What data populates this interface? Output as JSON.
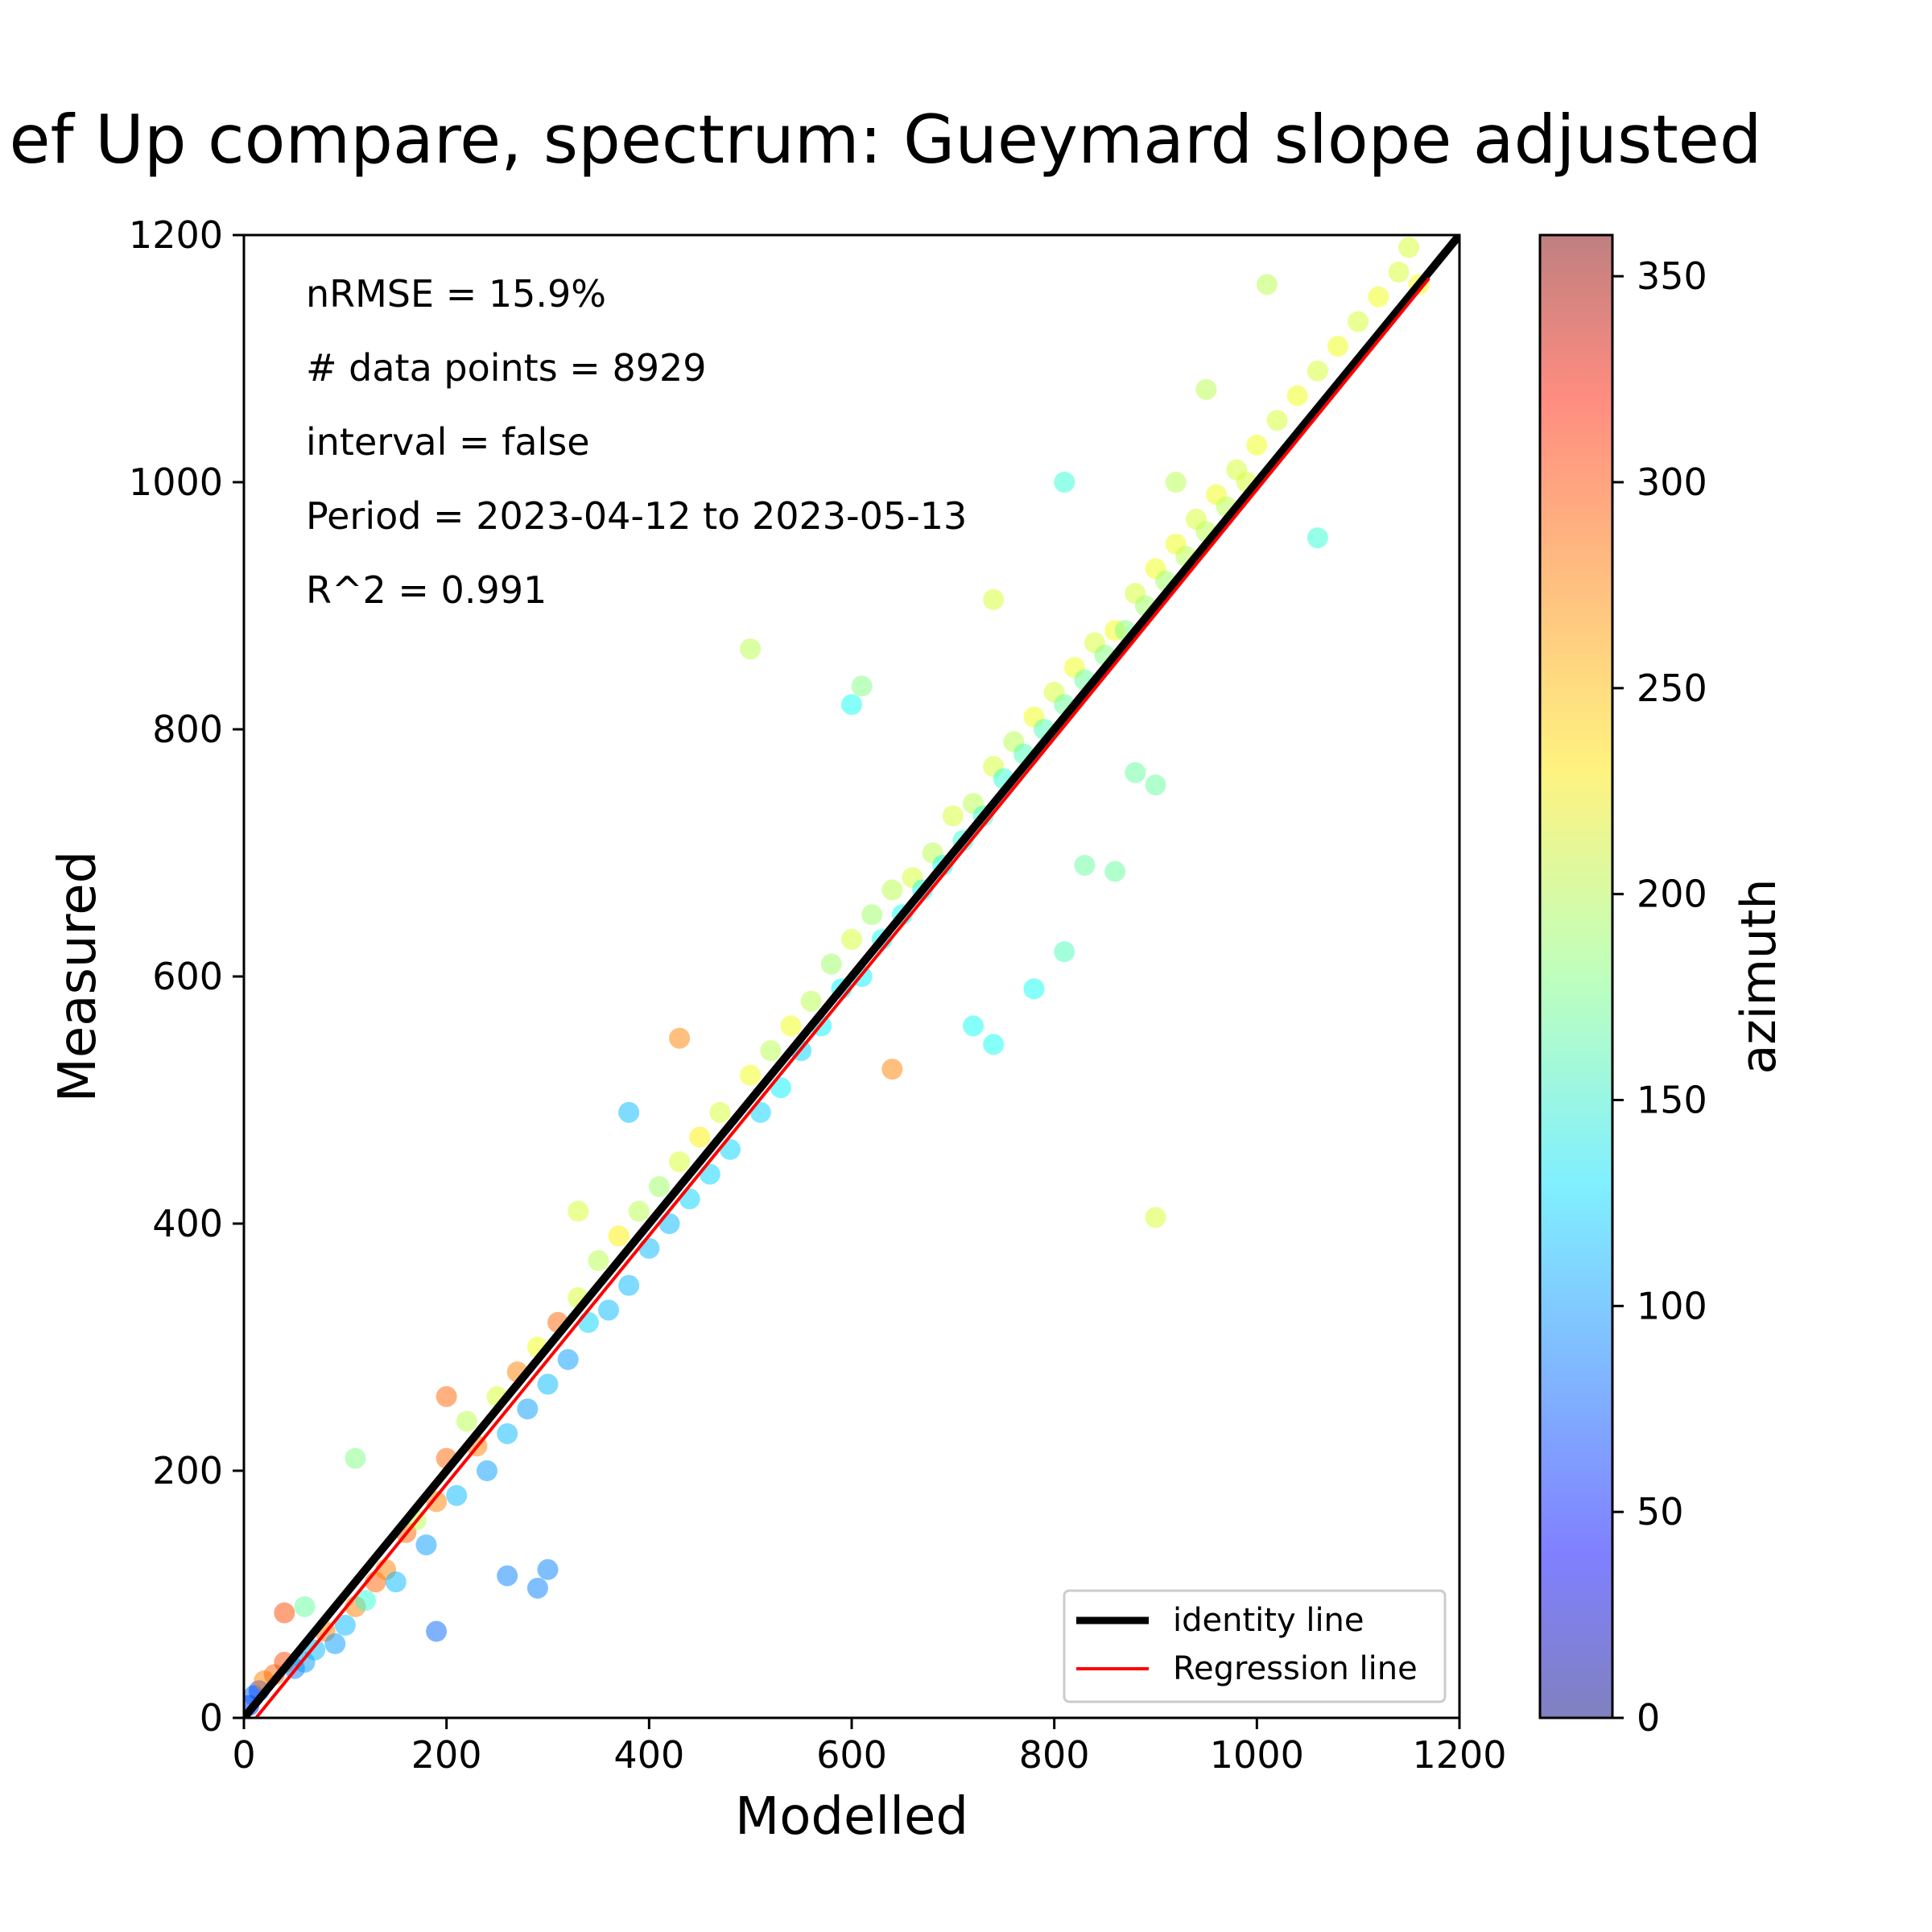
{
  "chart_data": {
    "type": "scatter",
    "title": "ef Up compare, spectrum: Gueymard slope adjusted",
    "xlabel": "Modelled",
    "ylabel": "Measured",
    "xlim": [
      0,
      1200
    ],
    "ylim": [
      0,
      1200
    ],
    "x_ticks": [
      "0",
      "200",
      "400",
      "600",
      "800",
      "1000",
      "1200"
    ],
    "y_ticks": [
      "0",
      "200",
      "400",
      "600",
      "800",
      "1000",
      "1200"
    ],
    "grid": false,
    "annotations": [
      "nRMSE = 15.9%",
      "# data points = 8929",
      "interval = false",
      "Period = 2023-04-12 to 2023-05-13",
      "R^2 = 0.991"
    ],
    "legend": {
      "placement": "lower-right",
      "entries": [
        {
          "label": "identity line",
          "color": "#000000"
        },
        {
          "label": "Regression line",
          "color": "#ff0000"
        }
      ]
    },
    "lines": [
      {
        "name": "identity line",
        "color": "#000000",
        "x": [
          0,
          1200
        ],
        "y": [
          0,
          1200
        ]
      },
      {
        "name": "Regression line",
        "color": "#ff0000",
        "x": [
          0,
          1170
        ],
        "y": [
          -12,
          1165
        ]
      }
    ],
    "colorbar": {
      "label": "azimuth",
      "range": [
        0,
        360
      ],
      "ticks": [
        "0",
        "50",
        "100",
        "150",
        "200",
        "250",
        "300",
        "350"
      ],
      "colormap": "jet",
      "alpha": 0.5
    },
    "series": [
      {
        "note_fields": [
          "x",
          "y",
          "azimuth"
        ],
        "points": [
          [
            5,
            10,
            60
          ],
          [
            10,
            18,
            80
          ],
          [
            15,
            22,
            70
          ],
          [
            20,
            30,
            270
          ],
          [
            30,
            35,
            280
          ],
          [
            40,
            45,
            290
          ],
          [
            50,
            40,
            90
          ],
          [
            60,
            45,
            100
          ],
          [
            70,
            55,
            110
          ],
          [
            80,
            70,
            270
          ],
          [
            90,
            60,
            100
          ],
          [
            100,
            75,
            110
          ],
          [
            110,
            90,
            270
          ],
          [
            120,
            95,
            150
          ],
          [
            130,
            110,
            280
          ],
          [
            140,
            120,
            270
          ],
          [
            150,
            110,
            110
          ],
          [
            160,
            150,
            280
          ],
          [
            170,
            160,
            200
          ],
          [
            180,
            140,
            100
          ],
          [
            190,
            175,
            270
          ],
          [
            200,
            210,
            280
          ],
          [
            210,
            180,
            110
          ],
          [
            220,
            240,
            200
          ],
          [
            230,
            220,
            270
          ],
          [
            240,
            200,
            100
          ],
          [
            250,
            260,
            210
          ],
          [
            260,
            230,
            110
          ],
          [
            270,
            280,
            270
          ],
          [
            280,
            250,
            100
          ],
          [
            290,
            300,
            220
          ],
          [
            300,
            270,
            110
          ],
          [
            310,
            320,
            280
          ],
          [
            320,
            290,
            100
          ],
          [
            330,
            340,
            210
          ],
          [
            340,
            320,
            120
          ],
          [
            350,
            370,
            200
          ],
          [
            360,
            330,
            110
          ],
          [
            370,
            390,
            230
          ],
          [
            380,
            350,
            110
          ],
          [
            390,
            410,
            200
          ],
          [
            400,
            380,
            110
          ],
          [
            410,
            430,
            190
          ],
          [
            420,
            400,
            110
          ],
          [
            430,
            450,
            210
          ],
          [
            440,
            420,
            120
          ],
          [
            450,
            470,
            230
          ],
          [
            460,
            440,
            120
          ],
          [
            470,
            490,
            210
          ],
          [
            480,
            460,
            120
          ],
          [
            500,
            520,
            220
          ],
          [
            510,
            490,
            120
          ],
          [
            520,
            540,
            200
          ],
          [
            530,
            510,
            130
          ],
          [
            540,
            560,
            220
          ],
          [
            550,
            540,
            120
          ],
          [
            560,
            580,
            200
          ],
          [
            570,
            560,
            130
          ],
          [
            580,
            610,
            190
          ],
          [
            590,
            590,
            130
          ],
          [
            600,
            630,
            210
          ],
          [
            610,
            600,
            130
          ],
          [
            620,
            650,
            190
          ],
          [
            630,
            630,
            140
          ],
          [
            640,
            670,
            200
          ],
          [
            650,
            650,
            140
          ],
          [
            660,
            680,
            210
          ],
          [
            670,
            670,
            140
          ],
          [
            680,
            700,
            200
          ],
          [
            690,
            690,
            140
          ],
          [
            700,
            730,
            210
          ],
          [
            710,
            710,
            150
          ],
          [
            720,
            740,
            200
          ],
          [
            730,
            730,
            150
          ],
          [
            740,
            770,
            210
          ],
          [
            750,
            760,
            150
          ],
          [
            760,
            790,
            200
          ],
          [
            770,
            780,
            160
          ],
          [
            780,
            810,
            220
          ],
          [
            790,
            800,
            160
          ],
          [
            800,
            830,
            210
          ],
          [
            810,
            820,
            170
          ],
          [
            820,
            850,
            220
          ],
          [
            830,
            840,
            170
          ],
          [
            840,
            870,
            210
          ],
          [
            850,
            860,
            180
          ],
          [
            860,
            880,
            220
          ],
          [
            870,
            880,
            180
          ],
          [
            880,
            910,
            210
          ],
          [
            890,
            900,
            190
          ],
          [
            900,
            930,
            220
          ],
          [
            910,
            920,
            190
          ],
          [
            920,
            950,
            220
          ],
          [
            930,
            940,
            200
          ],
          [
            940,
            970,
            210
          ],
          [
            950,
            960,
            200
          ],
          [
            960,
            990,
            220
          ],
          [
            970,
            980,
            200
          ],
          [
            980,
            1010,
            210
          ],
          [
            990,
            1000,
            210
          ],
          [
            1000,
            1030,
            220
          ],
          [
            1020,
            1050,
            210
          ],
          [
            1040,
            1070,
            220
          ],
          [
            1060,
            1090,
            210
          ],
          [
            1080,
            1110,
            220
          ],
          [
            1100,
            1130,
            210
          ],
          [
            1120,
            1150,
            220
          ],
          [
            1140,
            1170,
            210
          ],
          [
            1150,
            1190,
            210
          ],
          [
            1160,
            1160,
            220
          ],
          [
            500,
            865,
            200
          ],
          [
            600,
            820,
            140
          ],
          [
            610,
            835,
            180
          ],
          [
            740,
            905,
            210
          ],
          [
            810,
            1000,
            150
          ],
          [
            900,
            405,
            210
          ],
          [
            1060,
            955,
            150
          ],
          [
            780,
            590,
            140
          ],
          [
            740,
            545,
            140
          ],
          [
            720,
            560,
            140
          ],
          [
            810,
            620,
            160
          ],
          [
            830,
            690,
            170
          ],
          [
            860,
            685,
            170
          ],
          [
            380,
            490,
            110
          ],
          [
            430,
            550,
            270
          ],
          [
            640,
            525,
            270
          ],
          [
            290,
            105,
            90
          ],
          [
            300,
            120,
            90
          ],
          [
            260,
            115,
            90
          ],
          [
            190,
            70,
            80
          ],
          [
            920,
            1000,
            200
          ],
          [
            950,
            1075,
            200
          ],
          [
            1010,
            1160,
            200
          ],
          [
            880,
            765,
            170
          ],
          [
            900,
            755,
            170
          ],
          [
            330,
            410,
            210
          ],
          [
            200,
            260,
            280
          ],
          [
            110,
            210,
            180
          ],
          [
            40,
            85,
            290
          ],
          [
            60,
            90,
            170
          ]
        ]
      }
    ]
  }
}
